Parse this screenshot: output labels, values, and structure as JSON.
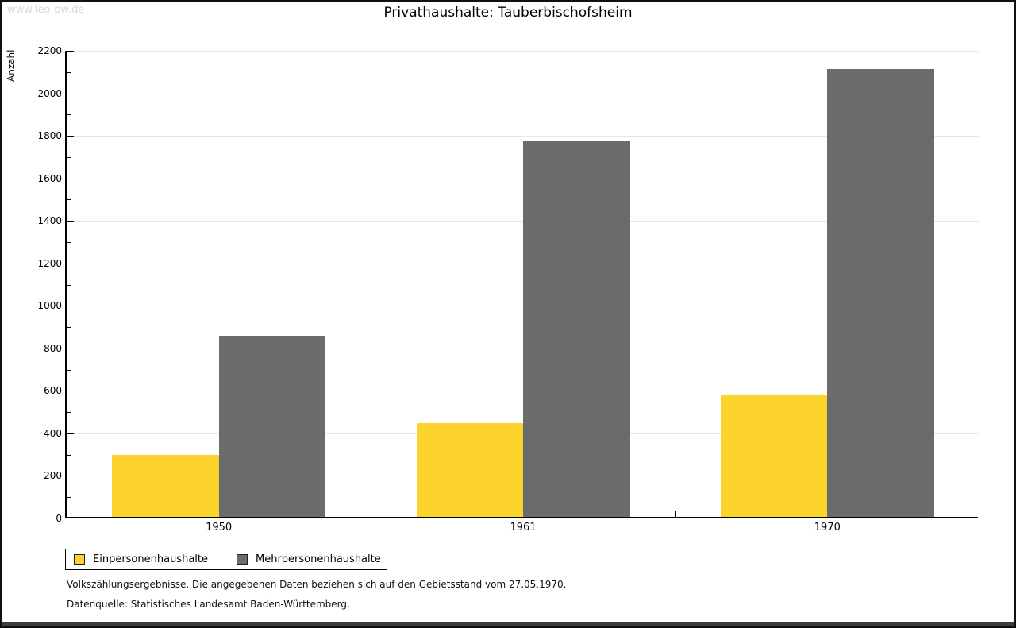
{
  "page": {
    "watermark": "www.leo-bw.de",
    "title": "Privathaushalte: Tauberbischofsheim",
    "footnote_line1": "Volkszählungsergebnisse. Die angegebenen Daten beziehen sich auf den Gebietsstand vom 27.05.1970.",
    "footnote_line2": "Datenquelle: Statistisches Landesamt Baden-Württemberg."
  },
  "chart_data": {
    "type": "bar",
    "title": "Privathaushalte: Tauberbischofsheim",
    "xlabel": "",
    "ylabel": "Anzahl",
    "categories": [
      "1950",
      "1961",
      "1970"
    ],
    "series": [
      {
        "name": "Einpersonenhaushalte",
        "color": "#FCD32D",
        "values": [
          290,
          440,
          575
        ]
      },
      {
        "name": "Mehrpersonenhaushalte",
        "color": "#6B6B6B",
        "values": [
          850,
          1765,
          2105
        ]
      }
    ],
    "ylim": [
      0,
      2200
    ],
    "ytick_step": 200,
    "yminor_step": 100,
    "grid": "horizontal-major",
    "gridline_color": "#e5e5e5",
    "legend_position": "bottom-left"
  }
}
